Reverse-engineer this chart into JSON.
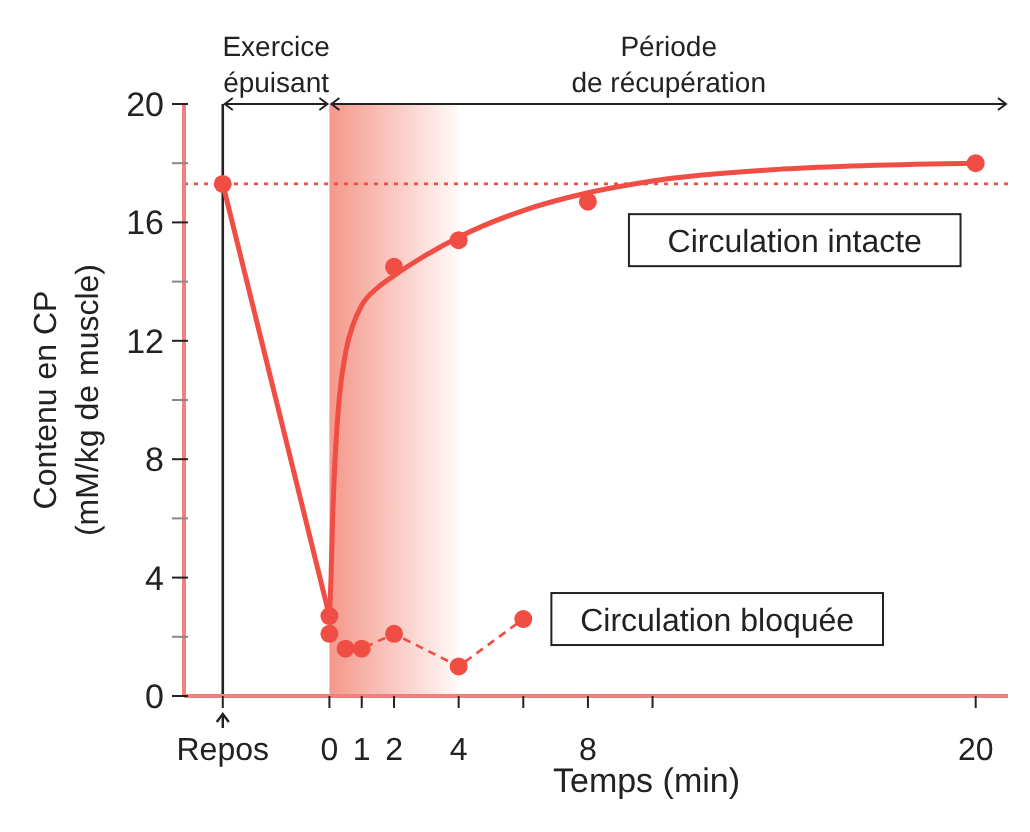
{
  "chart_data": {
    "type": "scatter",
    "xlabel": "Temps (min)",
    "ylabel": "Contenu en CP\n(mM/kg de muscle)",
    "xlim": [
      -4.5,
      21
    ],
    "xticks": [
      {
        "value": -3.3,
        "label": "Repos"
      },
      0,
      1,
      2,
      4,
      {
        "value": 6,
        "label": null
      },
      8,
      {
        "value": 10,
        "label": null
      },
      20
    ],
    "ylim": [
      0,
      20
    ],
    "yticks": [
      0,
      {
        "value": 2,
        "label": null
      },
      4,
      {
        "value": 6,
        "label": null
      },
      8,
      {
        "value": 10,
        "label": null
      },
      12,
      {
        "value": 14,
        "label": null
      },
      16,
      {
        "value": 18,
        "label": null
      },
      20
    ],
    "series": [
      {
        "name": "Circulation intacte",
        "color": "#f04e45",
        "marker": "circle",
        "x": [
          -3.3,
          0,
          2,
          4,
          8,
          20
        ],
        "values": [
          17.3,
          2.7,
          14.5,
          15.4,
          16.7,
          18.0
        ]
      },
      {
        "type": "line",
        "color": "#f04e45",
        "marker": "none",
        "line_style": "solid",
        "x": [
          -3.3,
          0
        ],
        "values": [
          17.3,
          2.7
        ]
      },
      {
        "type": "line",
        "color": "#f04e45",
        "marker": "none",
        "line_style": "solid",
        "x": [
          0,
          0.05,
          0.1,
          0.2,
          0.3,
          0.5,
          0.75,
          1,
          1.5,
          2,
          3,
          4,
          6,
          8,
          10,
          14,
          20
        ],
        "values": [
          2.7,
          4,
          6,
          8.5,
          10,
          11.6,
          12.6,
          13.2,
          13.8,
          14.2,
          14.9,
          15.5,
          16.4,
          17.0,
          17.4,
          17.8,
          18.0
        ]
      },
      {
        "name": "Circulation bloquée",
        "type": "line",
        "color": "#f04e45",
        "marker": "circle",
        "line_style": "dashed",
        "x": [
          0,
          0.5,
          1,
          2,
          4,
          6
        ],
        "values": [
          2.1,
          1.6,
          1.6,
          2.1,
          1.0,
          2.6
        ]
      }
    ],
    "ref_lines": [
      {
        "axis": "y",
        "value": 17.3,
        "color": "#f04e45",
        "line_style": "dotted"
      },
      {
        "axis": "x",
        "value": -3.3,
        "color": "#222222",
        "line_style": "solid"
      }
    ],
    "bands": [
      {
        "axis": "x",
        "from": 0,
        "to": 4,
        "color": "#f4988a"
      }
    ],
    "annotations": [
      "Exercice\népuisant",
      "Période\nde récupération"
    ]
  }
}
